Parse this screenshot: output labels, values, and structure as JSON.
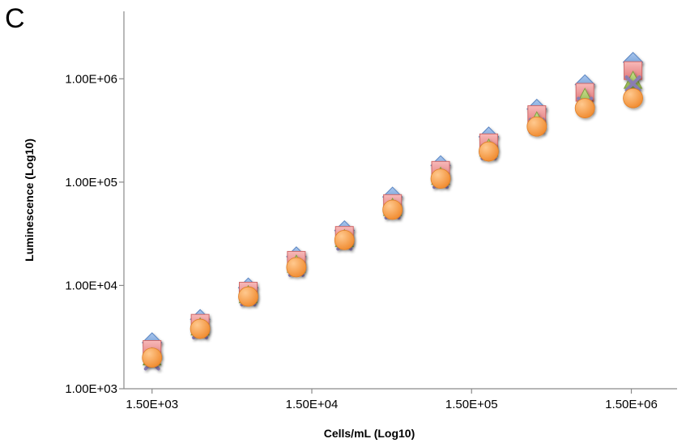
{
  "panel_label": "C",
  "chart_data": {
    "type": "scatter",
    "title": "",
    "xlabel": "Cells/mL (Log10)",
    "ylabel": "Luminescence (Log10)",
    "x_scale": "log",
    "y_scale": "log",
    "xlim": [
      1000,
      2900000
    ],
    "ylim": [
      1000,
      4500000
    ],
    "x_ticks": [
      1500,
      15000,
      150000,
      1500000
    ],
    "x_tick_labels": [
      "1.50E+03",
      "1.50E+04",
      "1.50E+05",
      "1.50E+06"
    ],
    "y_ticks": [
      1000,
      10000,
      100000,
      1000000
    ],
    "y_tick_labels": [
      "1.00E+03",
      "1.00E+04",
      "1.00E+05",
      "1.00E+06"
    ],
    "grid": false,
    "legend": "none",
    "x": [
      1500,
      3000,
      6000,
      12000,
      24000,
      48000,
      96000,
      192000,
      384000,
      768000,
      1536000
    ],
    "series": [
      {
        "marker": "diamond",
        "color": "#7ba3d6",
        "values": [
          2800,
          4700,
          9500,
          19000,
          34000,
          72000,
          145000,
          275000,
          510000,
          880000,
          1450000
        ]
      },
      {
        "marker": "square",
        "color": "#f29b9b",
        "values": [
          2400,
          4300,
          8800,
          17500,
          30500,
          62000,
          130000,
          240000,
          450000,
          740000,
          1200000
        ]
      },
      {
        "marker": "triangle",
        "color": "#a9c866",
        "values": [
          2000,
          3900,
          8000,
          15800,
          28000,
          56000,
          112000,
          210000,
          385000,
          650000,
          950000
        ]
      },
      {
        "marker": "x",
        "color": "#8a7db2",
        "values": [
          1800,
          3600,
          7500,
          14500,
          26000,
          52000,
          103000,
          195000,
          350000,
          560000,
          900000
        ]
      },
      {
        "marker": "circle",
        "color": "#f8a24a",
        "values": [
          2000,
          3800,
          7800,
          15000,
          27500,
          54000,
          108000,
          198000,
          345000,
          520000,
          650000
        ]
      }
    ]
  }
}
